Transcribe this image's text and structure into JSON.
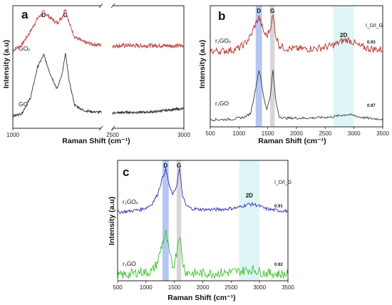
{
  "chart_data": [
    {
      "type": "line",
      "panel_label": "a",
      "xlabel": "Raman Shift (cm⁻¹)",
      "ylabel": "Intensity (a.u)",
      "xlim": [
        1000,
        3000
      ],
      "axis_break": [
        2000,
        2500
      ],
      "xticks": [
        {
          "label": "1000",
          "value": 1000
        },
        {
          "label": "2500",
          "value": 2500
        },
        {
          "label": "3000",
          "value": 3000
        }
      ],
      "peak_labels": [
        {
          "text": "D",
          "x": 1350
        },
        {
          "text": "G",
          "x": 1595
        }
      ],
      "series": [
        {
          "name": "GOₑ",
          "color": "#c05050",
          "offset": 0.62,
          "scale": 0.33,
          "noise": 0.018,
          "x": [
            1000,
            1100,
            1200,
            1280,
            1350,
            1420,
            1500,
            1560,
            1595,
            1640,
            1700,
            1800,
            1900,
            2000,
            2500,
            2600,
            2700,
            2800,
            2900,
            3000
          ],
          "y": [
            0.05,
            0.18,
            0.52,
            0.84,
            1.0,
            0.86,
            0.72,
            0.88,
            1.1,
            0.7,
            0.38,
            0.25,
            0.2,
            0.18,
            0.16,
            0.17,
            0.16,
            0.17,
            0.16,
            0.16
          ]
        },
        {
          "name": "GO",
          "color": "#333333",
          "offset": 0.1,
          "scale": 0.5,
          "noise": 0.01,
          "x": [
            1000,
            1100,
            1200,
            1280,
            1350,
            1420,
            1500,
            1560,
            1595,
            1640,
            1700,
            1800,
            1900,
            2000,
            2500,
            2600,
            2700,
            2800,
            2900,
            3000
          ],
          "y": [
            0.0,
            0.04,
            0.3,
            0.8,
            1.0,
            0.7,
            0.44,
            0.7,
            1.02,
            0.55,
            0.18,
            0.09,
            0.07,
            0.06,
            0.05,
            0.06,
            0.06,
            0.07,
            0.1,
            0.12
          ]
        }
      ]
    },
    {
      "type": "line",
      "panel_label": "b",
      "xlabel": "Raman Shift (cm⁻¹)",
      "ylabel": "Intensity (a.u)",
      "xlim": [
        500,
        3500
      ],
      "xticks": [
        500,
        1000,
        1500,
        2000,
        2500,
        3000,
        3500
      ],
      "bands": [
        {
          "name": "D",
          "from": 1290,
          "to": 1400,
          "color": "#9bb4ee"
        },
        {
          "name": "G",
          "from": 1540,
          "to": 1620,
          "color": "#c8c8c8"
        },
        {
          "name": "2D",
          "from": 2640,
          "to": 3000,
          "color": "#d3f1f6"
        }
      ],
      "ratio_header": "I_D/I_G",
      "series": [
        {
          "name": "r₁GOₑ",
          "color": "#b03028",
          "ratio": "0.93",
          "offset": 0.62,
          "scale": 0.3,
          "noise": 0.03,
          "x": [
            500,
            700,
            900,
            1000,
            1100,
            1200,
            1280,
            1350,
            1420,
            1480,
            1540,
            1590,
            1640,
            1700,
            1800,
            2000,
            2200,
            2400,
            2600,
            2700,
            2800,
            2900,
            3000,
            3100,
            3300,
            3500
          ],
          "y": [
            0.02,
            0.02,
            0.05,
            0.1,
            0.22,
            0.42,
            0.74,
            0.95,
            0.58,
            0.42,
            0.62,
            1.0,
            0.45,
            0.18,
            0.1,
            0.08,
            0.08,
            0.1,
            0.16,
            0.22,
            0.3,
            0.33,
            0.25,
            0.14,
            0.08,
            0.05
          ]
        },
        {
          "name": "r₁GO",
          "color": "#3a3a3a",
          "ratio": "0.97",
          "offset": 0.06,
          "scale": 0.42,
          "noise": 0.01,
          "x": [
            500,
            700,
            900,
            1000,
            1100,
            1200,
            1280,
            1350,
            1420,
            1480,
            1540,
            1590,
            1640,
            1700,
            1800,
            2000,
            2200,
            2400,
            2600,
            2700,
            2800,
            2900,
            3000,
            3100,
            3300,
            3500
          ],
          "y": [
            0.0,
            0.0,
            0.01,
            0.03,
            0.05,
            0.12,
            0.55,
            1.0,
            0.5,
            0.2,
            0.42,
            0.98,
            0.35,
            0.06,
            0.03,
            0.03,
            0.03,
            0.04,
            0.05,
            0.07,
            0.09,
            0.1,
            0.08,
            0.05,
            0.02,
            0.01
          ]
        }
      ]
    },
    {
      "type": "line",
      "panel_label": "c",
      "xlabel": "Raman Shift (cm⁻¹)",
      "ylabel": "Intensity (a.u)",
      "xlim": [
        500,
        3500
      ],
      "xticks": [
        500,
        1000,
        1500,
        2000,
        2500,
        3000,
        3500
      ],
      "bands": [
        {
          "name": "D",
          "from": 1290,
          "to": 1400,
          "color": "#9bb4ee"
        },
        {
          "name": "G",
          "from": 1540,
          "to": 1620,
          "color": "#c8c8c8"
        },
        {
          "name": "2D",
          "from": 2640,
          "to": 3000,
          "color": "#d3f1f6"
        }
      ],
      "ratio_header": "I_D/I_G",
      "series": [
        {
          "name": "r₁GOₑ",
          "color": "#2a2ab0",
          "ratio": "0.91",
          "offset": 0.57,
          "scale": 0.36,
          "noise": 0.014,
          "x": [
            500,
            700,
            900,
            1000,
            1100,
            1200,
            1280,
            1350,
            1420,
            1480,
            1540,
            1590,
            1640,
            1700,
            1800,
            2000,
            2200,
            2400,
            2600,
            2700,
            2800,
            2900,
            3000,
            3100,
            3300,
            3500
          ],
          "y": [
            0.0,
            0.02,
            0.06,
            0.1,
            0.18,
            0.4,
            0.75,
            1.0,
            0.55,
            0.4,
            0.62,
            1.02,
            0.4,
            0.16,
            0.08,
            0.06,
            0.06,
            0.07,
            0.1,
            0.14,
            0.18,
            0.18,
            0.14,
            0.08,
            0.04,
            0.02
          ]
        },
        {
          "name": "r₁GO",
          "color": "#3cbf2a",
          "ratio": "0.92",
          "offset": 0.04,
          "scale": 0.36,
          "noise": 0.04,
          "x": [
            500,
            700,
            900,
            1000,
            1100,
            1200,
            1280,
            1350,
            1420,
            1480,
            1540,
            1590,
            1640,
            1700,
            1800,
            2000,
            2200,
            2400,
            2600,
            2700,
            2800,
            2900,
            3000,
            3100,
            3300,
            3500
          ],
          "y": [
            0.0,
            0.04,
            0.1,
            0.08,
            0.1,
            0.3,
            0.72,
            1.0,
            0.45,
            0.2,
            0.55,
            1.0,
            0.35,
            0.1,
            0.06,
            0.06,
            0.06,
            0.08,
            0.1,
            0.12,
            0.14,
            0.14,
            0.1,
            0.07,
            0.05,
            0.04
          ]
        }
      ]
    }
  ]
}
